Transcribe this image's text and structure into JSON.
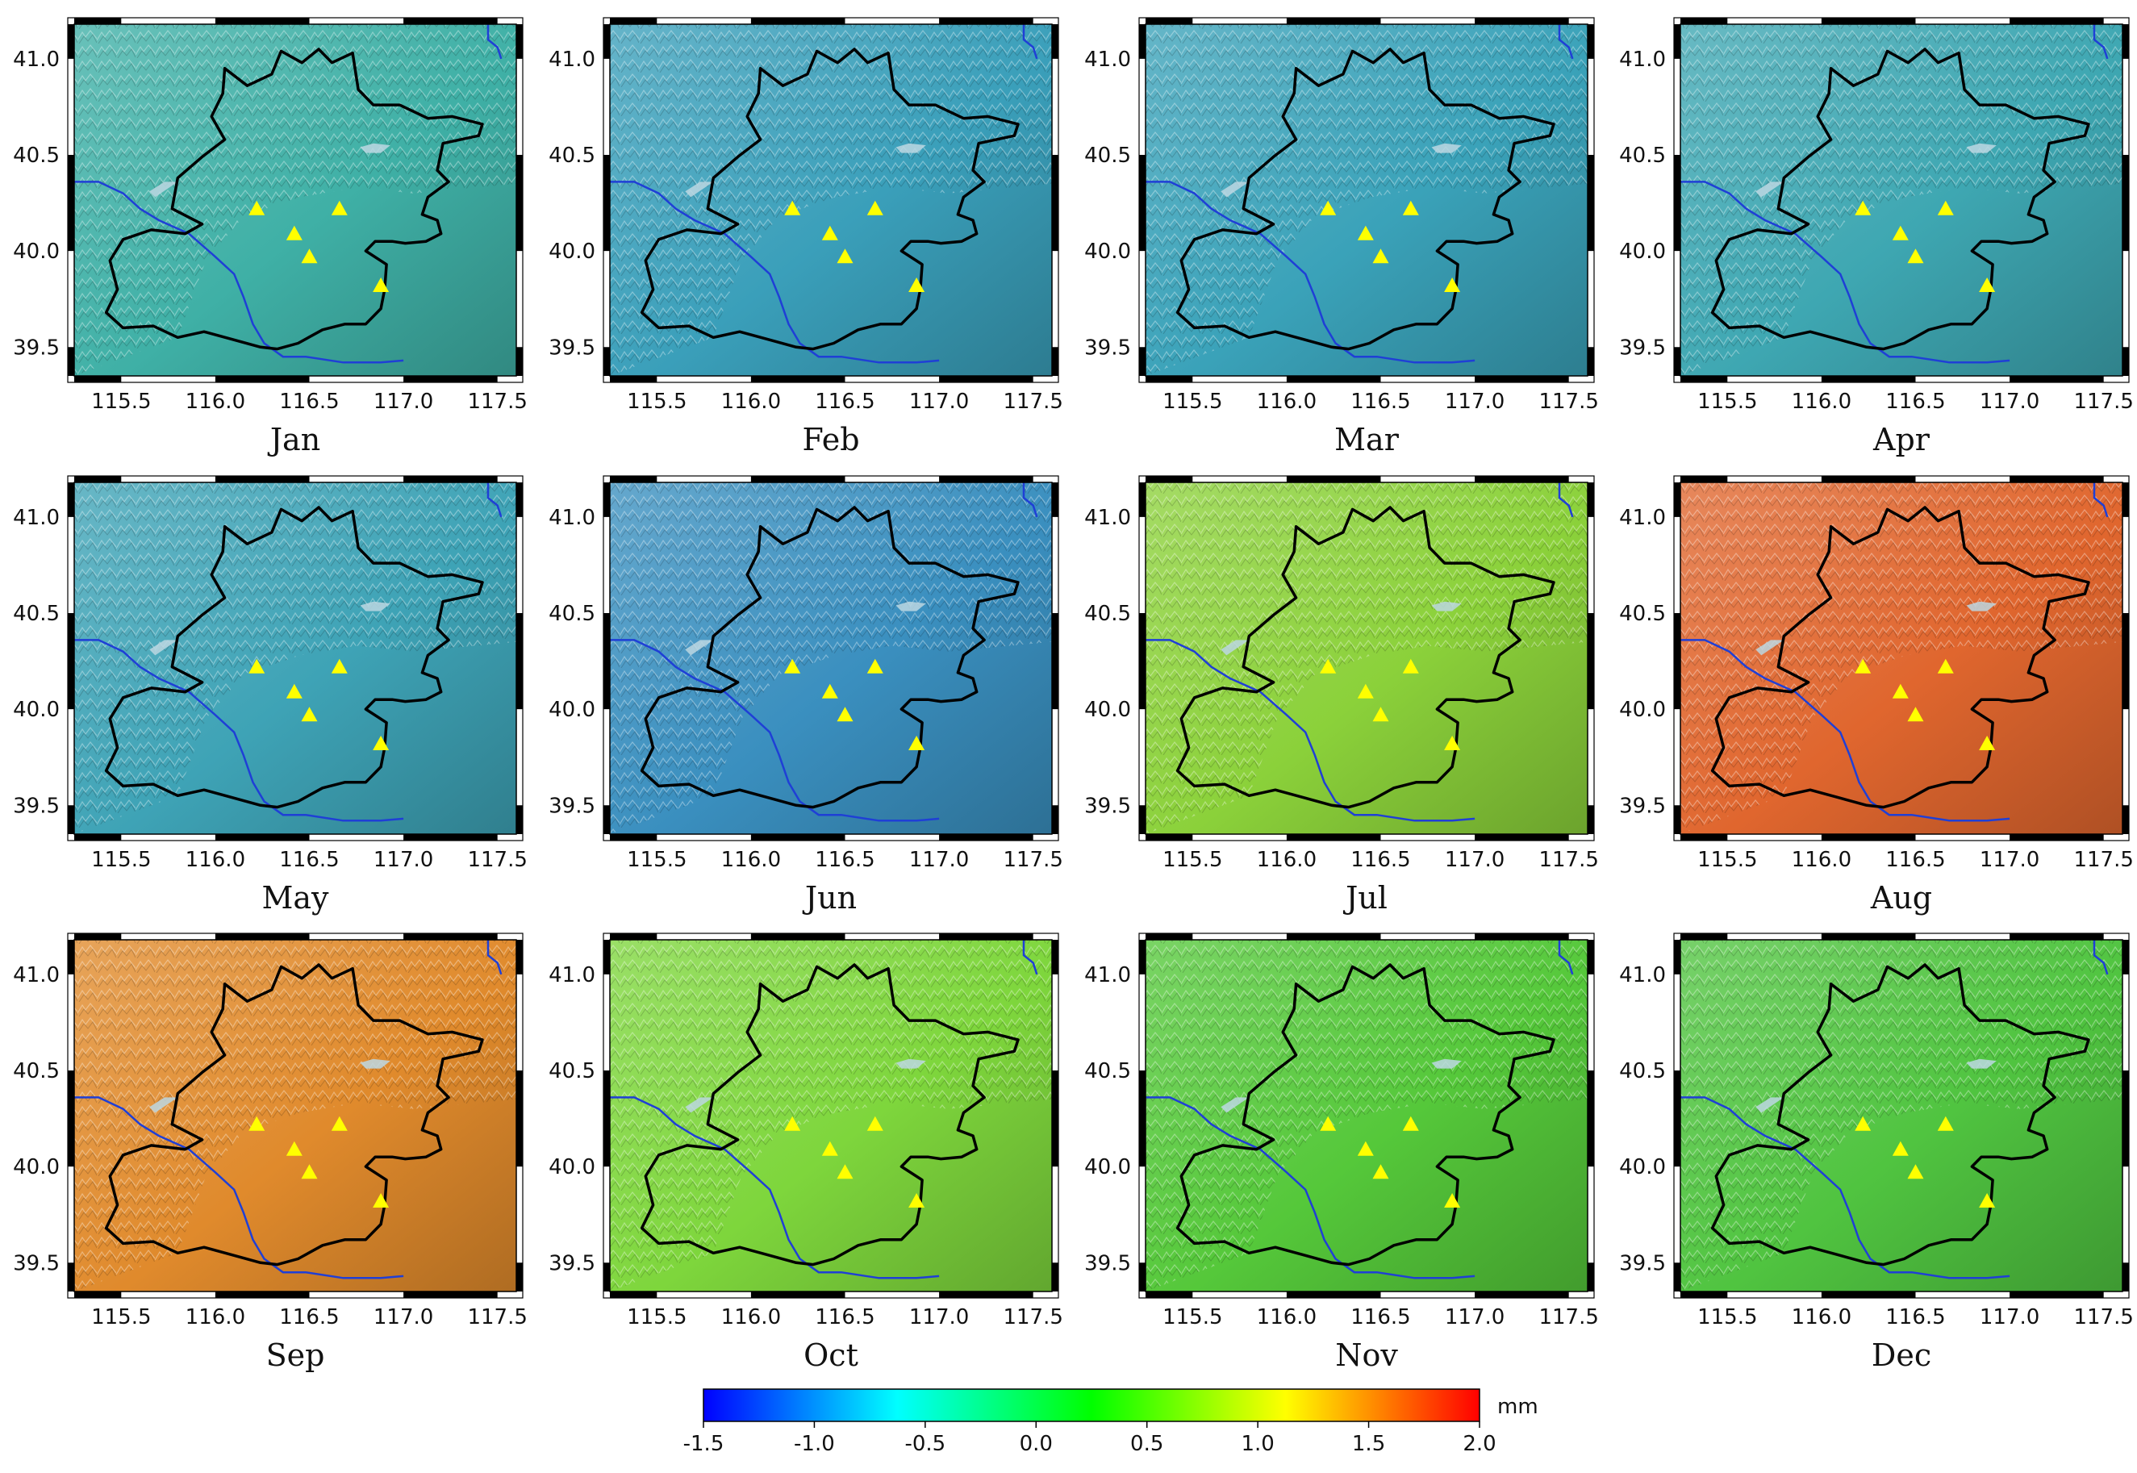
{
  "chart_data": {
    "type": "heatmap",
    "title": "",
    "xlabel": "",
    "ylabel": "",
    "xlim": [
      115.25,
      117.6
    ],
    "ylim": [
      39.35,
      41.18
    ],
    "x_ticks": [
      "115.5",
      "116.0",
      "116.5",
      "117.0",
      "117.5"
    ],
    "y_ticks": [
      "39.5",
      "40.0",
      "40.5",
      "41.0"
    ],
    "stations": [
      {
        "lon": 116.22,
        "lat": 40.22
      },
      {
        "lon": 116.66,
        "lat": 40.22
      },
      {
        "lon": 116.42,
        "lat": 40.09
      },
      {
        "lon": 116.5,
        "lat": 39.97
      },
      {
        "lon": 116.88,
        "lat": 39.82
      }
    ],
    "panels": [
      {
        "label": "Jan",
        "mean_value": -0.55,
        "color": "#3fb0a6"
      },
      {
        "label": "Feb",
        "mean_value": -0.75,
        "color": "#3a9fba"
      },
      {
        "label": "Mar",
        "mean_value": -0.72,
        "color": "#3aa2b9"
      },
      {
        "label": "Apr",
        "mean_value": -0.68,
        "color": "#3ea7b2"
      },
      {
        "label": "May",
        "mean_value": -0.7,
        "color": "#3ea3b6"
      },
      {
        "label": "Jun",
        "mean_value": -0.85,
        "color": "#3a8fbf"
      },
      {
        "label": "Jul",
        "mean_value": 0.55,
        "color": "#8bd13a"
      },
      {
        "label": "Aug",
        "mean_value": 1.75,
        "color": "#e0662e"
      },
      {
        "label": "Sep",
        "mean_value": 1.45,
        "color": "#e08a2c"
      },
      {
        "label": "Oct",
        "mean_value": 0.55,
        "color": "#7ed63c"
      },
      {
        "label": "Nov",
        "mean_value": 0.3,
        "color": "#55c83a"
      },
      {
        "label": "Dec",
        "mean_value": 0.25,
        "color": "#50c440"
      }
    ],
    "colorbar": {
      "unit": "mm",
      "range": [
        -1.5,
        2.0
      ],
      "tick_values": [
        -1.5,
        -1.0,
        -0.5,
        0.0,
        0.5,
        1.0,
        1.5,
        2.0
      ],
      "tick_labels": [
        "-1.5",
        "-1.0",
        "-0.5",
        "0.0",
        "0.5",
        "1.0",
        "1.5",
        "2.0"
      ],
      "stops": [
        "#0000ff",
        "#00ffff",
        "#00ff00",
        "#ffff00",
        "#ff0000"
      ]
    },
    "colors": {
      "boundary": "#000000",
      "river": "#1f3fd6",
      "reservoir": "#bcd7e2",
      "station": "#ffff00"
    }
  }
}
